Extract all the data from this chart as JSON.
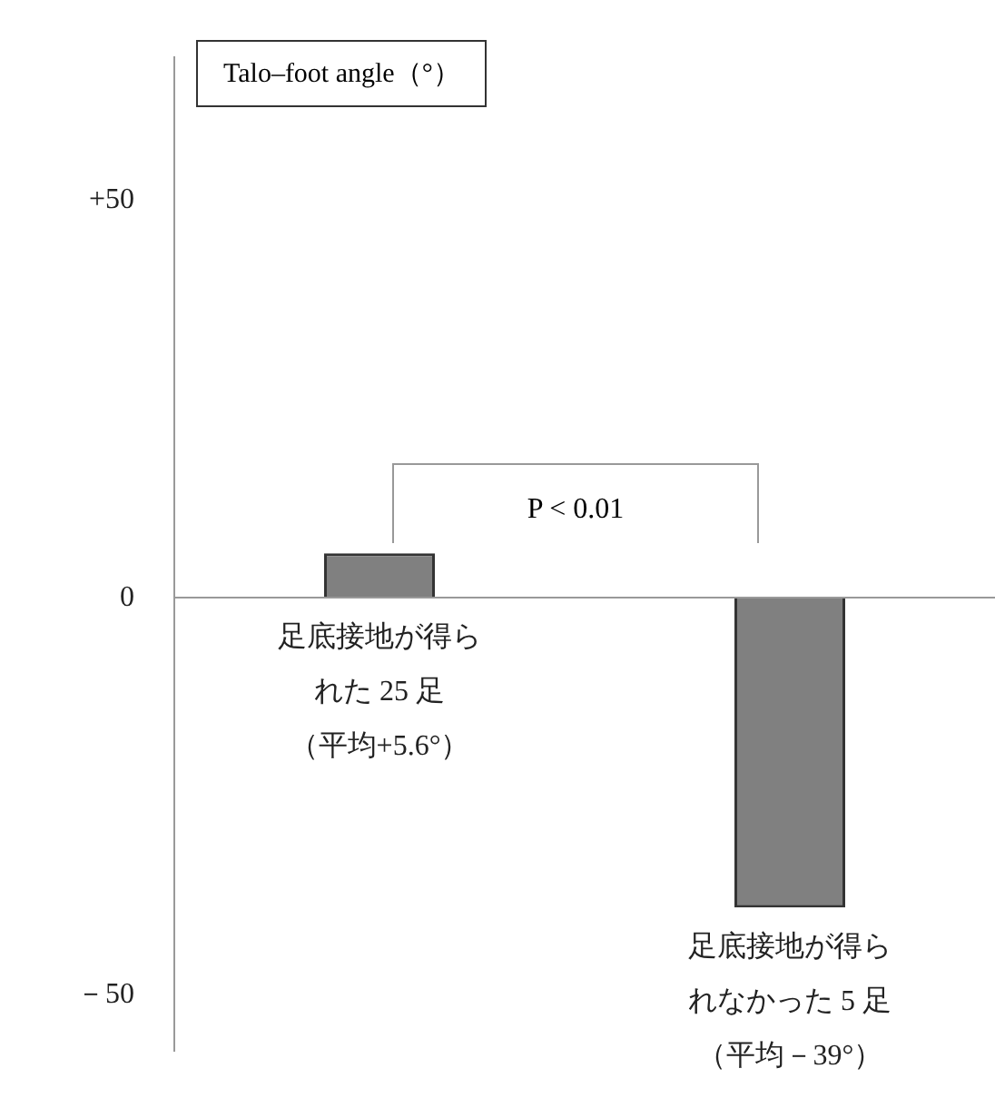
{
  "chart_data": {
    "type": "bar",
    "title": "Talo‒foot angle（°）",
    "categories": [
      "足底接地が得られた 25 足（平均+5.6°）",
      "足底接地が得られなかった 5 足（平均－39°）"
    ],
    "values": [
      5.6,
      -39
    ],
    "ref_lines": [
      {
        "axis": "y",
        "value": 0,
        "color": "#999999"
      }
    ],
    "color": "#808080",
    "ylim": [
      -57,
      68
    ],
    "yticks": [
      {
        "value": 50,
        "label": "+50"
      },
      0,
      {
        "value": -50,
        "label": "－50"
      }
    ],
    "grid": false,
    "legend": false,
    "annotations": [
      "P < 0.01"
    ]
  }
}
